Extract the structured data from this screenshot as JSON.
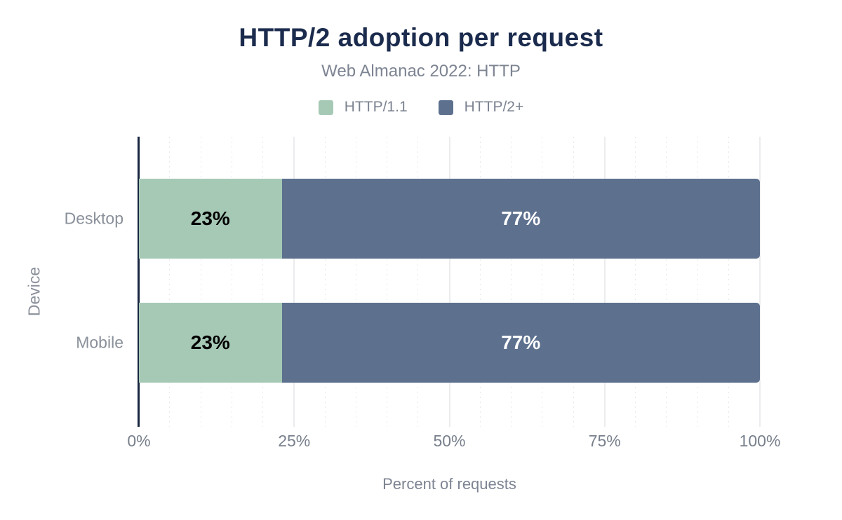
{
  "chart": {
    "title": "HTTP/2 adoption per request",
    "subtitle": "Web Almanac 2022: HTTP",
    "xlabel": "Percent of requests",
    "ylabel": "Device"
  },
  "colors": {
    "background": "#ffffff",
    "title": "#1b2b4d",
    "axis_line": "#17263e",
    "http11_green": "#a6c9b6",
    "http2_slate": "#5d708e"
  },
  "chart_data": {
    "type": "bar",
    "orientation": "horizontal",
    "stacked": true,
    "title": "HTTP/2 adoption per request",
    "subtitle": "Web Almanac 2022: HTTP",
    "xlabel": "Percent of requests",
    "ylabel": "Device",
    "categories": [
      "Desktop",
      "Mobile"
    ],
    "series": [
      {
        "name": "HTTP/1.1",
        "color": "#a6c9b6",
        "label_color": "#000000",
        "values": [
          23,
          23
        ]
      },
      {
        "name": "HTTP/2+",
        "color": "#5d708e",
        "label_color": "#ffffff",
        "values": [
          77,
          77
        ]
      }
    ],
    "value_labels": [
      [
        "23%",
        "77%"
      ],
      [
        "23%",
        "77%"
      ]
    ],
    "x_ticks": [
      "0%",
      "25%",
      "50%",
      "75%",
      "100%"
    ],
    "x_tick_values": [
      0,
      25,
      50,
      75,
      100
    ],
    "xlim": [
      0,
      100
    ],
    "grid": {
      "minor_every": 5,
      "major_every": 25
    },
    "legend_position": "top"
  }
}
